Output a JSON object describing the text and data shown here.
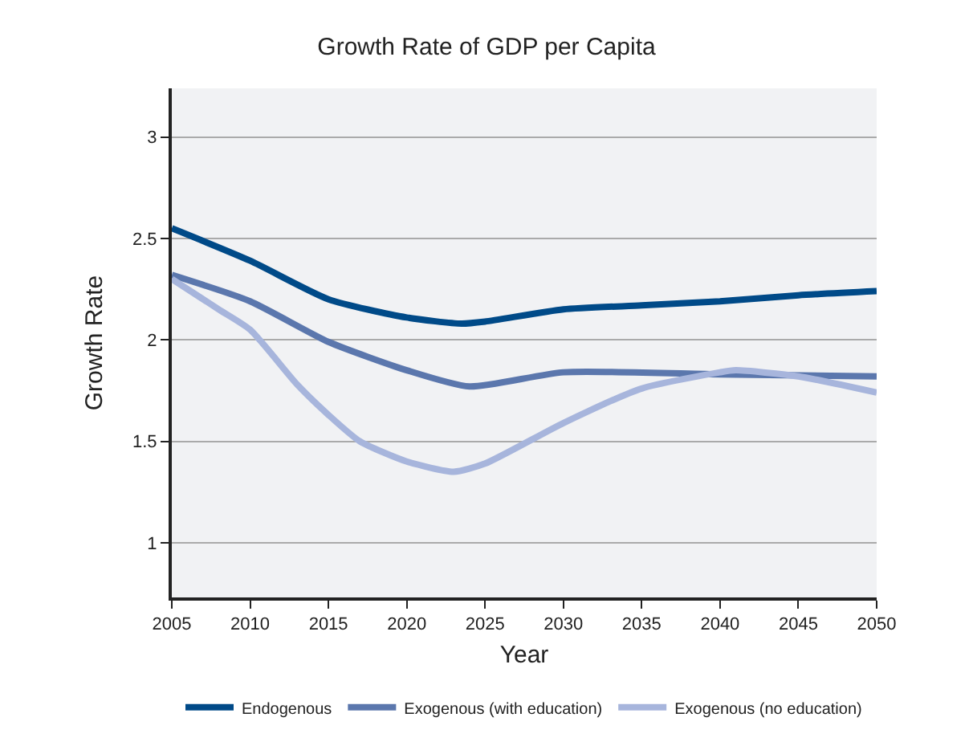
{
  "chart_data": {
    "type": "line",
    "title": "Growth Rate of GDP per Capita",
    "xlabel": "Year",
    "ylabel": "Growth Rate",
    "xlim": [
      2005,
      2050
    ],
    "xticks": [
      2005,
      2010,
      2015,
      2020,
      2025,
      2030,
      2035,
      2040,
      2045,
      2050
    ],
    "ylim": [
      0.73,
      3.24
    ],
    "yticks": [
      1,
      1.5,
      2,
      2.5,
      3
    ],
    "grid": "y",
    "legend": "bottom",
    "marker": "none",
    "line_style": "solid",
    "series": [
      {
        "name": "Endogenous",
        "color": "#004a88",
        "x": [
          2005,
          2010,
          2015,
          2020,
          2023.5,
          2025,
          2030,
          2035,
          2040,
          2045,
          2050
        ],
        "values": [
          2.55,
          2.39,
          2.2,
          2.11,
          2.08,
          2.09,
          2.15,
          2.17,
          2.19,
          2.22,
          2.24
        ]
      },
      {
        "name": "Exogenous (with education)",
        "color": "#5b77ad",
        "x": [
          2005,
          2010,
          2015,
          2020,
          2024,
          2030,
          2040,
          2050
        ],
        "values": [
          2.32,
          2.19,
          1.99,
          1.85,
          1.77,
          1.84,
          1.83,
          1.82
        ]
      },
      {
        "name": "Exogenous (no education)",
        "color": "#a7b5dc",
        "x": [
          2005,
          2008,
          2010,
          2013,
          2015,
          2017,
          2020,
          2023,
          2025,
          2030,
          2035,
          2040,
          2041,
          2045,
          2050
        ],
        "values": [
          2.3,
          2.15,
          2.05,
          1.78,
          1.63,
          1.5,
          1.4,
          1.35,
          1.39,
          1.59,
          1.76,
          1.84,
          1.85,
          1.82,
          1.74
        ]
      }
    ]
  }
}
